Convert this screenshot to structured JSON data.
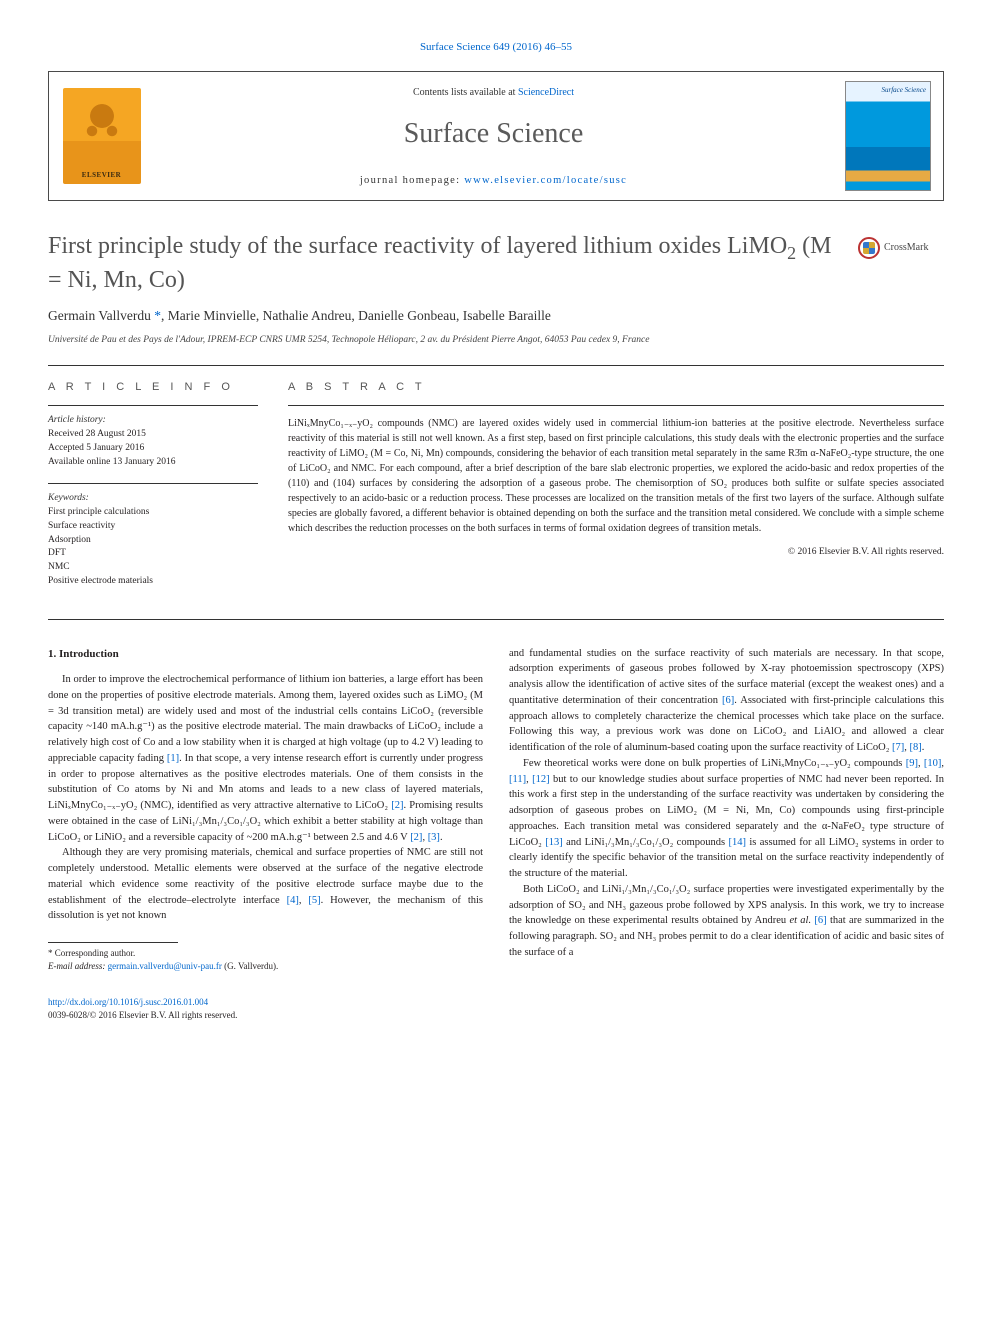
{
  "top_link": {
    "label": "Surface Science 649 (2016) 46–55",
    "color": "#0066cc"
  },
  "header": {
    "contents_line_pre": "Contents lists available at ",
    "contents_line_link": "ScienceDirect",
    "journal_name": "Surface Science",
    "homepage_pre": "journal homepage: ",
    "homepage_link": "www.elsevier.com/locate/susc",
    "elsevier_wordmark": "ELSEVIER",
    "cover_title": "Surface Science"
  },
  "crossmark_label": "CrossMark",
  "title_main": "First principle study of the surface reactivity of layered lithium oxides LiMO",
  "title_sub2": "2",
  "title_tail": " (M = Ni, Mn, Co)",
  "authors_html": "Germain Vallverdu <a class='corr' href='#'>*</a>, Marie Minvielle, Nathalie Andreu, Danielle Gonbeau, Isabelle Baraille",
  "affiliation": "Université de Pau et des Pays de l'Adour, IPREM-ECP CNRS UMR 5254, Technopole Hélioparc, 2 av. du Président Pierre Angot, 64053 Pau cedex 9, France",
  "info": {
    "heading": "A R T I C L E   I N F O",
    "history_label": "Article history:",
    "history_lines": [
      "Received 28 August 2015",
      "Accepted 5 January 2016",
      "Available online 13 January 2016"
    ],
    "keywords_label": "Keywords:",
    "keywords": [
      "First principle calculations",
      "Surface reactivity",
      "Adsorption",
      "DFT",
      "NMC",
      "Positive electrode materials"
    ]
  },
  "abstract": {
    "heading": "A B S T R A C T",
    "text": "LiNiₓMnyCo₁₋ₓ₋yO₂ compounds (NMC) are layered oxides widely used in commercial lithium-ion batteries at the positive electrode. Nevertheless surface reactivity of this material is still not well known. As a first step, based on first principle calculations, this study deals with the electronic properties and the surface reactivity of LiMO₂ (M = Co, Ni, Mn) compounds, considering the behavior of each transition metal separately in the same R3̄m α-NaFeO₂-type structure, the one of LiCoO₂ and NMC. For each compound, after a brief description of the bare slab electronic properties, we explored the acido-basic and redox properties of the (110) and (104) surfaces by considering the adsorption of a gaseous probe. The chemisorption of SO₂ produces both sulfite or sulfate species associated respectively to an acido-basic or a reduction process. These processes are localized on the transition metals of the first two layers of the surface. Although sulfate species are globally favored, a different behavior is obtained depending on both the surface and the transition metal considered. We conclude with a simple scheme which describes the reduction processes on the both surfaces in terms of formal oxidation degrees of transition metals.",
    "copyright": "© 2016 Elsevier B.V. All rights reserved."
  },
  "body": {
    "sec1_heading": "1. Introduction",
    "left_paras": [
      "In order to improve the electrochemical performance of lithium ion batteries, a large effort has been done on the properties of positive electrode materials. Among them, layered oxides such as LiMO₂ (M = 3d transition metal) are widely used and most of the industrial cells contains LiCoO₂ (reversible capacity ~140 mA.h.g⁻¹) as the positive electrode material. The main drawbacks of LiCoO₂ include a relatively high cost of Co and a low stability when it is charged at high voltage (up to 4.2 V) leading to appreciable capacity fading <a class='ref-link' href='#'>[1]</a>. In that scope, a very intense research effort is currently under progress in order to propose alternatives as the positive electrodes materials. One of them consists in the substitution of Co atoms by Ni and Mn atoms and leads to a new class of layered materials, LiNiₓMnyCo₁₋ₓ₋yO₂ (NMC), identified as very attractive alternative to LiCoO₂ <a class='ref-link' href='#'>[2]</a>. Promising results were obtained in the case of LiNi₁/₃Mn₁/₃Co₁/₃O₂ which exhibit a better stability at high voltage than LiCoO₂ or LiNiO₂ and a reversible capacity of ~200 mA.h.g⁻¹ between 2.5 and 4.6 V <a class='ref-link' href='#'>[2]</a>, <a class='ref-link' href='#'>[3]</a>.",
      "Although they are very promising materials, chemical and surface properties of NMC are still not completely understood. Metallic elements were observed at the surface of the negative electrode material which evidence some reactivity of the positive electrode surface maybe due to the establishment of the electrode–electrolyte interface <a class='ref-link' href='#'>[4]</a>, <a class='ref-link' href='#'>[5]</a>. However, the mechanism of this dissolution is yet not known"
    ],
    "right_paras": [
      "and fundamental studies on the surface reactivity of such materials are necessary. In that scope, adsorption experiments of gaseous probes followed by X-ray photoemission spectroscopy (XPS) analysis allow the identification of active sites of the surface material (except the weakest ones) and a quantitative determination of their concentration <a class='ref-link' href='#'>[6]</a>. Associated with first-principle calculations this approach allows to completely characterize the chemical processes which take place on the surface. Following this way, a previous work was done on LiCoO₂ and LiAlO₂ and allowed a clear identification of the role of aluminum-based coating upon the surface reactivity of LiCoO₂ <a class='ref-link' href='#'>[7]</a>, <a class='ref-link' href='#'>[8]</a>.",
      "Few theoretical works were done on bulk properties of LiNiₓMnyCo₁₋ₓ₋yO₂ compounds <a class='ref-link' href='#'>[9]</a>, <a class='ref-link' href='#'>[10]</a>, <a class='ref-link' href='#'>[11]</a>, <a class='ref-link' href='#'>[12]</a> but to our knowledge studies about surface properties of NMC had never been reported. In this work a first step in the understanding of the surface reactivity was undertaken by considering the adsorption of gaseous probes on LiMO₂ (M = Ni, Mn, Co) compounds using first-principle approaches. Each transition metal was considered separately and the α-NaFeO₂ type structure of LiCoO₂ <a class='ref-link' href='#'>[13]</a> and LiNi₁/₃Mn₁/₃Co₁/₃O₂ compounds <a class='ref-link' href='#'>[14]</a> is assumed for all LiMO₂ systems in order to clearly identify the specific behavior of the transition metal on the surface reactivity independently of the structure of the material.",
      "Both LiCoO₂ and LiNi₁/₃Mn₁/₃Co₁/₃O₂ surface properties were investigated experimentally by the adsorption of SO₂ and NH₃ gazeous probe followed by XPS analysis. In this work, we try to increase the knowledge on these experimental results obtained by Andreu <i>et al.</i> <a class='ref-link' href='#'>[6]</a> that are summarized in the following paragraph. SO₂ and NH₃ probes permit to do a clear identification of acidic and basic sites of the surface of a"
    ]
  },
  "footnote": {
    "corresponding_label": "* Corresponding author.",
    "email_label": "E-mail address:",
    "email": "germain.vallverdu@univ-pau.fr",
    "email_tail": " (G. Vallverdu)."
  },
  "footer": {
    "doi": "http://dx.doi.org/10.1016/j.susc.2016.01.004",
    "line2": "0039-6028/© 2016 Elsevier B.V. All rights reserved."
  },
  "colors": {
    "link": "#0066cc",
    "text": "#231f20",
    "heading_gray": "#545454",
    "rule": "#333333"
  }
}
